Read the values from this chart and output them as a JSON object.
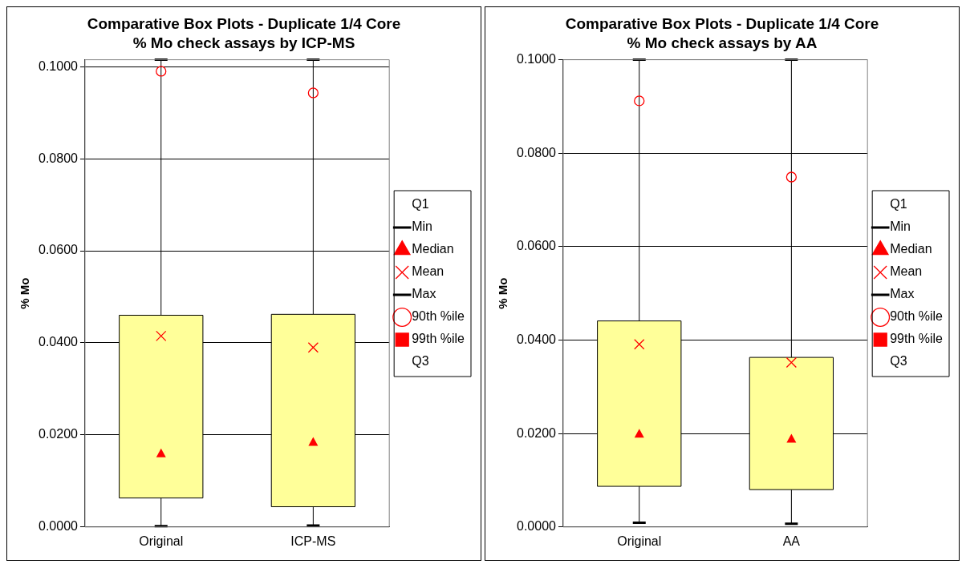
{
  "chart_data": [
    {
      "type": "box",
      "title": "Comparative Box Plots - Duplicate 1/4 Core",
      "subtitle": "% Mo check assays by ICP-MS",
      "ylabel": "% Mo",
      "categories": [
        "Original",
        "ICP-MS"
      ],
      "ylim": [
        0,
        0.1015
      ],
      "yticks": [
        {
          "value": 0,
          "label": "0.0000"
        },
        {
          "value": 0.02,
          "label": "0.0200"
        },
        {
          "value": 0.04,
          "label": "0.0400"
        },
        {
          "value": 0.06,
          "label": "0.0600"
        },
        {
          "value": 0.08,
          "label": "0.0800"
        },
        {
          "value": 0.1,
          "label": "0.1000"
        }
      ],
      "grid": "y",
      "legend": "right",
      "color": "#ffff99",
      "boxes": [
        {
          "low": 0.0002,
          "q1": 0.0063,
          "median": 0.016,
          "q3": 0.046,
          "high": 0.1015,
          "mean": 0.0415
        },
        {
          "low": 0.0003,
          "q1": 0.0044,
          "median": 0.0185,
          "q3": 0.0462,
          "high": 0.1015,
          "mean": 0.039
        }
      ],
      "series": [
        {
          "name": "Q1",
          "type": "scatter",
          "color": "#000000",
          "marker": "none",
          "values": [
            null,
            null
          ]
        },
        {
          "name": "Min",
          "type": "scatter",
          "color": "#000000",
          "values": [
            null,
            null
          ]
        },
        {
          "name": "Median",
          "type": "scatter",
          "color": "#ff0000",
          "marker": "triangle",
          "values": [
            null,
            null
          ]
        },
        {
          "name": "Mean",
          "type": "scatter",
          "color": "#ff0000",
          "marker": "cross",
          "values": [
            null,
            null
          ]
        },
        {
          "name": "Max",
          "type": "scatter",
          "color": "#000000",
          "values": [
            null,
            null
          ]
        },
        {
          "name": "90th %ile",
          "type": "scatter",
          "marker": "circle",
          "color": "#ff0000",
          "values": [
            0.099,
            0.0943
          ]
        },
        {
          "name": "99th %ile",
          "type": "scatter",
          "marker": "square",
          "color": "#ff0000",
          "values": [
            null,
            null
          ]
        },
        {
          "name": "Q3",
          "type": "scatter",
          "color": "#000000",
          "marker": "none",
          "values": [
            null,
            null
          ]
        }
      ]
    },
    {
      "type": "box",
      "title": "Comparative Box Plots - Duplicate 1/4 Core",
      "subtitle": "% Mo check assays by AA",
      "ylabel": "% Mo",
      "categories": [
        "Original",
        "AA"
      ],
      "ylim": [
        0,
        0.1
      ],
      "yticks": [
        {
          "value": 0,
          "label": "0.0000"
        },
        {
          "value": 0.02,
          "label": "0.0200"
        },
        {
          "value": 0.04,
          "label": "0.0400"
        },
        {
          "value": 0.06,
          "label": "0.0600"
        },
        {
          "value": 0.08,
          "label": "0.0800"
        },
        {
          "value": 0.1,
          "label": "0.1000"
        }
      ],
      "grid": "y",
      "legend": "right",
      "color": "#ffff99",
      "boxes": [
        {
          "low": 0.0009,
          "q1": 0.0087,
          "median": 0.02,
          "q3": 0.0441,
          "high": 0.1,
          "mean": 0.0391
        },
        {
          "low": 0.0007,
          "q1": 0.008,
          "median": 0.0189,
          "q3": 0.0363,
          "high": 0.1,
          "mean": 0.0352
        }
      ],
      "series": [
        {
          "name": "Q1",
          "type": "scatter",
          "color": "#000000",
          "marker": "none",
          "values": [
            null,
            null
          ]
        },
        {
          "name": "Min",
          "type": "scatter",
          "color": "#000000",
          "values": [
            null,
            null
          ]
        },
        {
          "name": "Median",
          "type": "scatter",
          "color": "#ff0000",
          "marker": "triangle",
          "values": [
            null,
            null
          ]
        },
        {
          "name": "Mean",
          "type": "scatter",
          "color": "#ff0000",
          "marker": "cross",
          "values": [
            null,
            null
          ]
        },
        {
          "name": "Max",
          "type": "scatter",
          "color": "#000000",
          "values": [
            null,
            null
          ]
        },
        {
          "name": "90th %ile",
          "type": "scatter",
          "marker": "circle",
          "color": "#ff0000",
          "values": [
            0.0912,
            0.0749
          ]
        },
        {
          "name": "99th %ile",
          "type": "scatter",
          "marker": "square",
          "color": "#ff0000",
          "values": [
            null,
            null
          ]
        },
        {
          "name": "Q3",
          "type": "scatter",
          "color": "#000000",
          "marker": "none",
          "values": [
            null,
            null
          ]
        }
      ]
    }
  ]
}
